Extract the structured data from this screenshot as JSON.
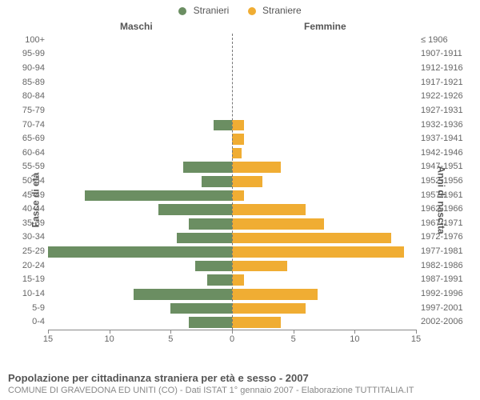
{
  "legend": {
    "male": {
      "label": "Stranieri",
      "color": "#6b8e62"
    },
    "female": {
      "label": "Straniere",
      "color": "#f0ad33"
    }
  },
  "side_titles": {
    "left": "Maschi",
    "right": "Femmine"
  },
  "y_titles": {
    "left": "Fasce di età",
    "right": "Anni di nascita"
  },
  "footer": {
    "title": "Popolazione per cittadinanza straniera per età e sesso - 2007",
    "sub": "COMUNE DI GRAVEDONA ED UNITI (CO) - Dati ISTAT 1° gennaio 2007 - Elaborazione TUTTITALIA.IT"
  },
  "chart": {
    "type": "population-pyramid",
    "xlim": 15,
    "xticks": [
      15,
      10,
      5,
      0,
      5,
      10,
      15
    ],
    "background_color": "#ffffff",
    "axis_color": "#888888",
    "center_dash_color": "#777777",
    "label_color": "#666666",
    "label_fontsize": 11,
    "rows": [
      {
        "age": "100+",
        "year": "≤ 1906",
        "m": 0,
        "f": 0
      },
      {
        "age": "95-99",
        "year": "1907-1911",
        "m": 0,
        "f": 0
      },
      {
        "age": "90-94",
        "year": "1912-1916",
        "m": 0,
        "f": 0
      },
      {
        "age": "85-89",
        "year": "1917-1921",
        "m": 0,
        "f": 0
      },
      {
        "age": "80-84",
        "year": "1922-1926",
        "m": 0,
        "f": 0
      },
      {
        "age": "75-79",
        "year": "1927-1931",
        "m": 0,
        "f": 0
      },
      {
        "age": "70-74",
        "year": "1932-1936",
        "m": 1.5,
        "f": 1
      },
      {
        "age": "65-69",
        "year": "1937-1941",
        "m": 0,
        "f": 1
      },
      {
        "age": "60-64",
        "year": "1942-1946",
        "m": 0,
        "f": 0.8
      },
      {
        "age": "55-59",
        "year": "1947-1951",
        "m": 4,
        "f": 4
      },
      {
        "age": "50-54",
        "year": "1952-1956",
        "m": 2.5,
        "f": 2.5
      },
      {
        "age": "45-49",
        "year": "1957-1961",
        "m": 12,
        "f": 1
      },
      {
        "age": "40-44",
        "year": "1962-1966",
        "m": 6,
        "f": 6
      },
      {
        "age": "35-39",
        "year": "1967-1971",
        "m": 3.5,
        "f": 7.5
      },
      {
        "age": "30-34",
        "year": "1972-1976",
        "m": 4.5,
        "f": 13
      },
      {
        "age": "25-29",
        "year": "1977-1981",
        "m": 15,
        "f": 14
      },
      {
        "age": "20-24",
        "year": "1982-1986",
        "m": 3,
        "f": 4.5
      },
      {
        "age": "15-19",
        "year": "1987-1991",
        "m": 2,
        "f": 1
      },
      {
        "age": "10-14",
        "year": "1992-1996",
        "m": 8,
        "f": 7
      },
      {
        "age": "5-9",
        "year": "1997-2001",
        "m": 5,
        "f": 6
      },
      {
        "age": "0-4",
        "year": "2002-2006",
        "m": 3.5,
        "f": 4
      }
    ]
  }
}
